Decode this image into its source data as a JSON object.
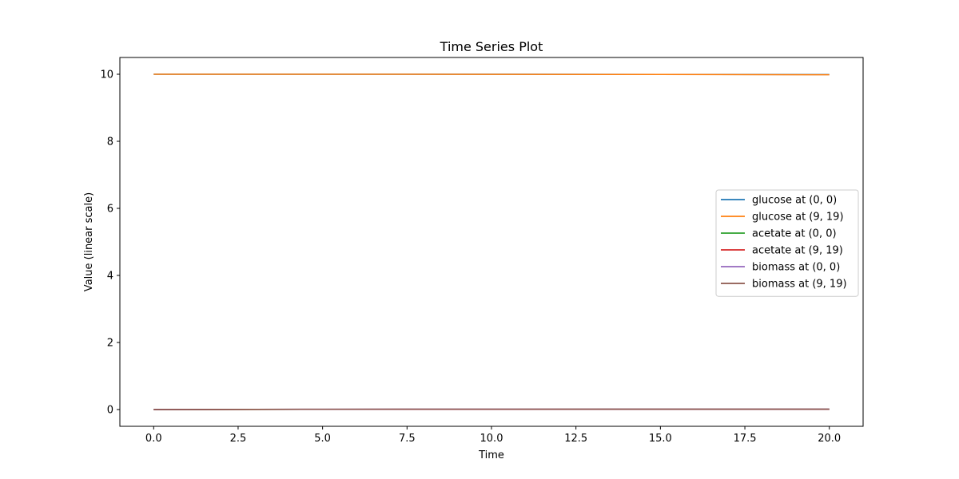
{
  "chart_data": {
    "type": "line",
    "title": "Time Series Plot",
    "xlabel": "Time",
    "ylabel": "Value (linear scale)",
    "xlim": [
      -1.0,
      21.0
    ],
    "ylim": [
      -0.5,
      10.5
    ],
    "xticks": [
      0.0,
      2.5,
      5.0,
      7.5,
      10.0,
      12.5,
      15.0,
      17.5,
      20.0
    ],
    "xtick_labels": [
      "0.0",
      "2.5",
      "5.0",
      "7.5",
      "10.0",
      "12.5",
      "15.0",
      "17.5",
      "20.0"
    ],
    "yticks": [
      0,
      2,
      4,
      6,
      8,
      10
    ],
    "ytick_labels": [
      "0",
      "2",
      "4",
      "6",
      "8",
      "10"
    ],
    "grid": false,
    "legend_position": "center-right",
    "series": [
      {
        "name": "glucose at (0, 0)",
        "color": "#1f77b4",
        "x": [
          0,
          5,
          10,
          15,
          20
        ],
        "y": [
          10.0,
          10.0,
          10.0,
          9.995,
          9.99
        ]
      },
      {
        "name": "glucose at (9, 19)",
        "color": "#ff7f0e",
        "x": [
          0,
          5,
          10,
          15,
          20
        ],
        "y": [
          10.0,
          10.0,
          9.998,
          9.993,
          9.985
        ]
      },
      {
        "name": "acetate at (0, 0)",
        "color": "#2ca02c",
        "x": [
          0,
          5,
          10,
          15,
          20
        ],
        "y": [
          0.0,
          0.005,
          0.007,
          0.008,
          0.008
        ]
      },
      {
        "name": "acetate at (9, 19)",
        "color": "#d62728",
        "x": [
          0,
          5,
          10,
          15,
          20
        ],
        "y": [
          0.0,
          0.005,
          0.007,
          0.008,
          0.008
        ]
      },
      {
        "name": "biomass at (0, 0)",
        "color": "#9467bd",
        "x": [
          0,
          5,
          10,
          15,
          20
        ],
        "y": [
          0.0,
          0.01,
          0.012,
          0.012,
          0.012
        ]
      },
      {
        "name": "biomass at (9, 19)",
        "color": "#8c564b",
        "x": [
          0,
          5,
          10,
          15,
          20
        ],
        "y": [
          0.0,
          0.01,
          0.012,
          0.012,
          0.012
        ]
      }
    ]
  }
}
